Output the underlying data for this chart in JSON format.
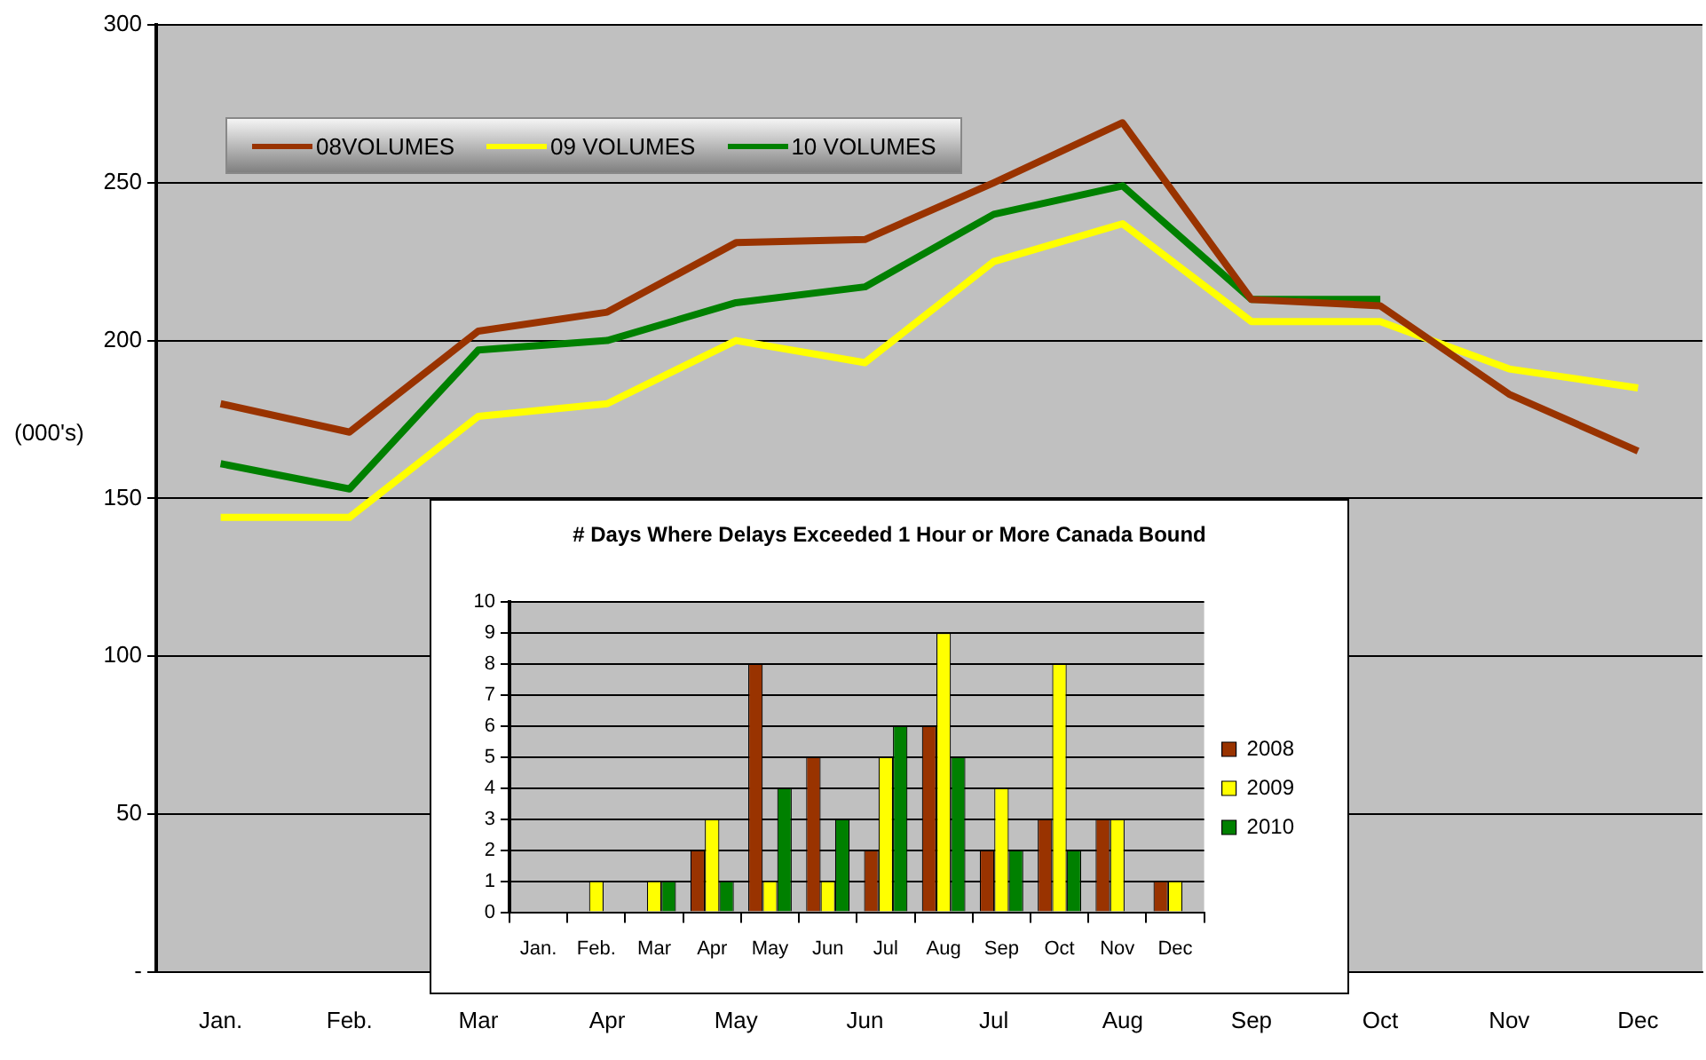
{
  "chart_data": [
    {
      "type": "line",
      "ylabel": "(000's)",
      "categories": [
        "Jan.",
        "Feb.",
        "Mar",
        "Apr",
        "May",
        "Jun",
        "Jul",
        "Aug",
        "Sep",
        "Oct",
        "Nov",
        "Dec"
      ],
      "series": [
        {
          "name": "08VOLUMES",
          "color": "#993300",
          "values": [
            180,
            171,
            203,
            209,
            231,
            232,
            250,
            269,
            213,
            211,
            183,
            165
          ]
        },
        {
          "name": "09 VOLUMES",
          "color": "#ffff00",
          "values": [
            144,
            144,
            176,
            180,
            200,
            193,
            225,
            237,
            206,
            206,
            191,
            185
          ]
        },
        {
          "name": "10 VOLUMES",
          "color": "#008000",
          "values": [
            161,
            153,
            197,
            200,
            212,
            217,
            240,
            249,
            213,
            213,
            null,
            null
          ]
        }
      ],
      "ylim": [
        0,
        300
      ],
      "yticks": [
        {
          "value": 0,
          "label": "-"
        },
        50,
        100,
        150,
        200,
        250,
        300
      ],
      "grid": "y",
      "legend": "top left",
      "marker": "none",
      "line_style": "solid"
    },
    {
      "type": "bar",
      "title": "# Days Where Delays Exceeded 1 Hour or More Canada Bound",
      "categories": [
        "Jan.",
        "Feb.",
        "Mar",
        "Apr",
        "May",
        "Jun",
        "Jul",
        "Aug",
        "Sep",
        "Oct",
        "Nov",
        "Dec"
      ],
      "series": [
        {
          "name": "2008",
          "color": "#993300",
          "values": [
            0,
            0,
            0,
            2,
            8,
            5,
            2,
            6,
            2,
            3,
            3,
            1
          ]
        },
        {
          "name": "2009",
          "color": "#ffff00",
          "values": [
            0,
            1,
            1,
            3,
            1,
            1,
            5,
            9,
            4,
            8,
            3,
            1
          ]
        },
        {
          "name": "2010",
          "color": "#008000",
          "values": [
            0,
            0,
            1,
            1,
            4,
            3,
            6,
            5,
            2,
            2,
            0,
            0
          ]
        }
      ],
      "ylim": [
        0,
        10
      ],
      "yticks": [
        0,
        1,
        2,
        3,
        4,
        5,
        6,
        7,
        8,
        9,
        10
      ],
      "grid": "y",
      "legend": "right"
    }
  ]
}
